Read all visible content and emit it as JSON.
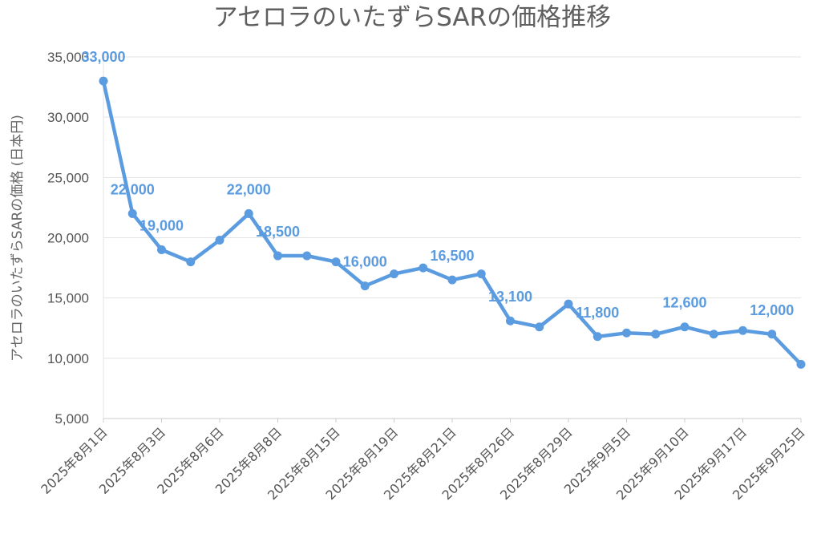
{
  "chart_data": {
    "type": "line",
    "title": "アセロラのいたずらSARの価格推移",
    "xlabel": "",
    "ylabel": "アセロラのいたずらSARの価格 (日本円)",
    "ylim": [
      5000,
      35000
    ],
    "yticks": [
      5000,
      10000,
      15000,
      20000,
      25000,
      30000,
      35000
    ],
    "ytick_labels": [
      "5,000",
      "10,000",
      "15,000",
      "20,000",
      "25,000",
      "30,000",
      "35,000"
    ],
    "grid": true,
    "legend": "none",
    "color": "#5b9be0",
    "tick_labels": [
      "2025年8月1日",
      "2025年8月3日",
      "2025年8月6日",
      "2025年8月8日",
      "2025年8月15日",
      "2025年8月19日",
      "2025年8月21日",
      "2025年8月26日",
      "2025年8月29日",
      "2025年9月5日",
      "2025年9月10日",
      "2025年9月17日",
      "2025年9月25日"
    ],
    "values": [
      33000,
      22000,
      19000,
      18000,
      19800,
      22000,
      18500,
      18500,
      18000,
      16000,
      17000,
      17500,
      16500,
      17000,
      13100,
      12600,
      14500,
      11800,
      12100,
      12000,
      12600,
      12000,
      12300,
      12000,
      9500
    ],
    "data_labels": [
      {
        "index": 0,
        "text": "33,000"
      },
      {
        "index": 1,
        "text": "22,000"
      },
      {
        "index": 2,
        "text": "19,000"
      },
      {
        "index": 5,
        "text": "22,000"
      },
      {
        "index": 6,
        "text": "18,500"
      },
      {
        "index": 9,
        "text": "16,000"
      },
      {
        "index": 12,
        "text": "16,500"
      },
      {
        "index": 14,
        "text": "13,100"
      },
      {
        "index": 17,
        "text": "11,800"
      },
      {
        "index": 20,
        "text": "12,600"
      },
      {
        "index": 23,
        "text": "12,000"
      }
    ]
  }
}
